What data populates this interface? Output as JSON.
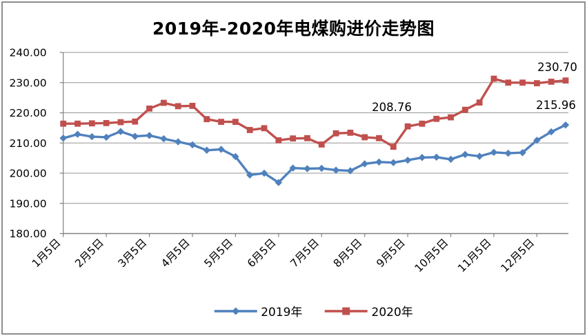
{
  "title": "2019年-2020年电煤购进价走势图",
  "legend": {
    "items": [
      {
        "label": "2019年",
        "color": "#4F81BD",
        "marker": "diamond"
      },
      {
        "label": "2020年",
        "color": "#C0504D",
        "marker": "square"
      }
    ],
    "position": "bottom"
  },
  "chart_data": {
    "type": "line",
    "total_points": 36,
    "points_per_axis_label": 3,
    "x_axis_visible_labels": [
      "1月5日",
      "2月5日",
      "3月5日",
      "4月5日",
      "5月5日",
      "6月5日",
      "7月5日",
      "8月5日",
      "9月5日",
      "10月5日",
      "11月5日",
      "12月5日"
    ],
    "y_axis": {
      "min": 180,
      "max": 240,
      "step": 10,
      "tick_labels": [
        "180.00",
        "190.00",
        "200.00",
        "210.00",
        "220.00",
        "230.00",
        "240.00"
      ]
    },
    "grid": true,
    "legend_position": "bottom",
    "series": [
      {
        "name": "2019年",
        "color": "#4F81BD",
        "marker": "diamond",
        "values": [
          211.6,
          212.9,
          212.1,
          211.9,
          213.8,
          212.2,
          212.5,
          211.4,
          210.4,
          209.4,
          207.6,
          207.9,
          205.5,
          199.4,
          200.0,
          196.9,
          201.7,
          201.5,
          201.6,
          201.0,
          200.8,
          203.1,
          203.7,
          203.5,
          204.3,
          205.2,
          205.3,
          204.6,
          206.2,
          205.6,
          206.9,
          206.6,
          206.8,
          210.9,
          213.7,
          215.96
        ]
      },
      {
        "name": "2020年",
        "color": "#C0504D",
        "marker": "square",
        "values": [
          216.4,
          216.4,
          216.5,
          216.6,
          216.9,
          217.1,
          221.4,
          223.3,
          222.2,
          222.3,
          217.9,
          217.0,
          217.0,
          214.3,
          214.9,
          210.9,
          211.5,
          211.6,
          209.5,
          213.2,
          213.4,
          211.9,
          211.6,
          208.76,
          215.5,
          216.4,
          218.0,
          218.5,
          221.0,
          223.4,
          231.3,
          230.0,
          230.0,
          229.8,
          230.3,
          230.7
        ]
      }
    ],
    "annotations": [
      {
        "text": "208.76",
        "series": "2020年",
        "point_index": 23,
        "x": 568,
        "y": 161
      },
      {
        "text": "230.70",
        "series": "2020年",
        "point_index": 35,
        "x": 808,
        "y": 103
      },
      {
        "text": "215.96",
        "series": "2019年",
        "point_index": 35,
        "x": 806,
        "y": 158
      }
    ]
  },
  "colors": {
    "background": "#ffffff",
    "border": "#8c8c8c",
    "grid": "#969696",
    "axis": "#808080",
    "text": "#000000",
    "series_2019": "#4F81BD",
    "series_2020": "#C0504D"
  }
}
